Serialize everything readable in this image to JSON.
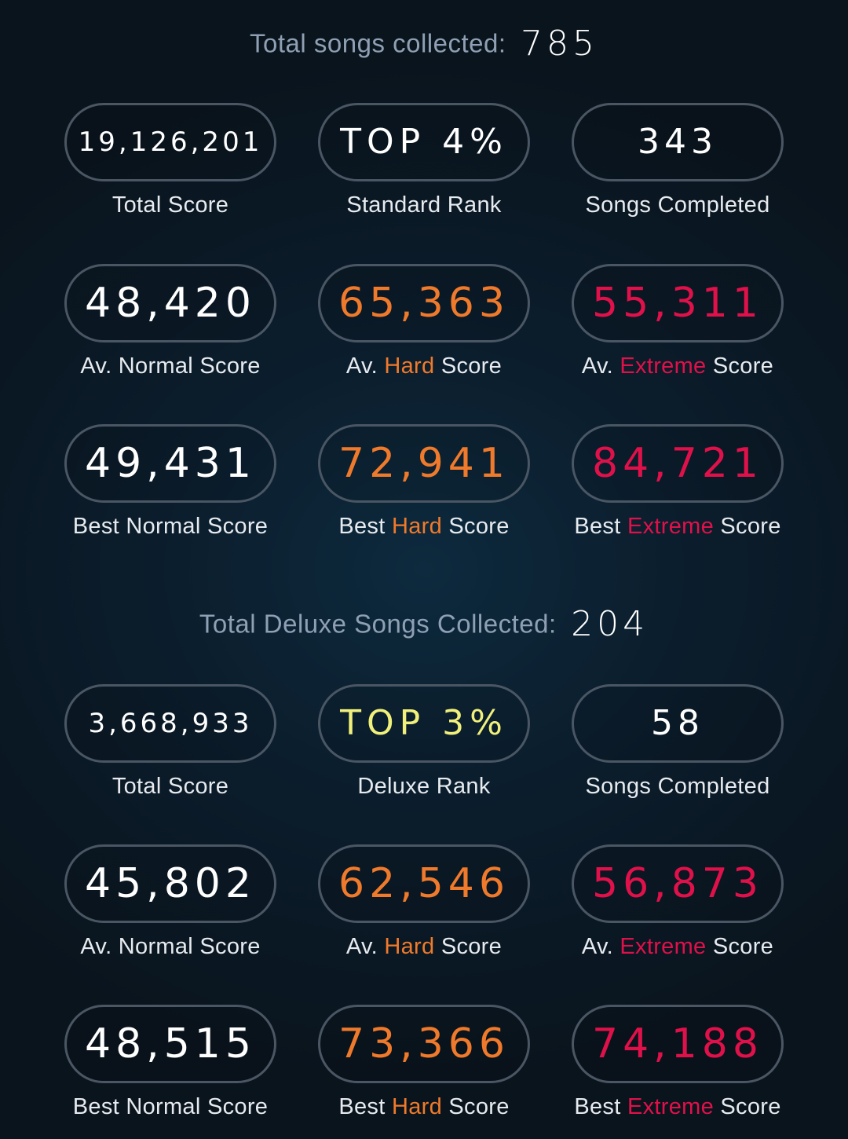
{
  "standard": {
    "header_label": "Total songs collected:",
    "header_value": "785",
    "total_score": {
      "value": "19,126,201",
      "caption": "Total Score"
    },
    "rank": {
      "value": "TOP 4%",
      "caption": "Standard Rank"
    },
    "songs_completed": {
      "value": "343",
      "caption": "Songs Completed"
    },
    "av_normal": {
      "value": "48,420",
      "caption": "Av. Normal Score"
    },
    "av_hard": {
      "value": "65,363",
      "caption_prefix": "Av.",
      "caption_difficulty": "Hard",
      "caption_suffix": "Score"
    },
    "av_extreme": {
      "value": "55,311",
      "caption_prefix": "Av.",
      "caption_difficulty": "Extreme",
      "caption_suffix": "Score"
    },
    "best_normal": {
      "value": "49,431",
      "caption": "Best Normal Score"
    },
    "best_hard": {
      "value": "72,941",
      "caption_prefix": "Best",
      "caption_difficulty": "Hard",
      "caption_suffix": "Score"
    },
    "best_extreme": {
      "value": "84,721",
      "caption_prefix": "Best",
      "caption_difficulty": "Extreme",
      "caption_suffix": "Score"
    }
  },
  "deluxe": {
    "header_label": "Total Deluxe Songs Collected:",
    "header_value": "204",
    "total_score": {
      "value": "3,668,933",
      "caption": "Total Score"
    },
    "rank": {
      "value": "TOP 3%",
      "caption": "Deluxe Rank"
    },
    "songs_completed": {
      "value": "58",
      "caption": "Songs Completed"
    },
    "av_normal": {
      "value": "45,802",
      "caption": "Av. Normal Score"
    },
    "av_hard": {
      "value": "62,546",
      "caption_prefix": "Av.",
      "caption_difficulty": "Hard",
      "caption_suffix": "Score"
    },
    "av_extreme": {
      "value": "56,873",
      "caption_prefix": "Av.",
      "caption_difficulty": "Extreme",
      "caption_suffix": "Score"
    },
    "best_normal": {
      "value": "48,515",
      "caption": "Best Normal Score"
    },
    "best_hard": {
      "value": "73,366",
      "caption_prefix": "Best",
      "caption_difficulty": "Hard",
      "caption_suffix": "Score"
    },
    "best_extreme": {
      "value": "74,188",
      "caption_prefix": "Best",
      "caption_difficulty": "Extreme",
      "caption_suffix": "Score"
    }
  },
  "colors": {
    "hard": "#f07a2b",
    "extreme": "#e0114a",
    "deluxe_rank": "#f1f07a",
    "pill_border": "#4a5663",
    "header_label": "#8fa0b4"
  }
}
